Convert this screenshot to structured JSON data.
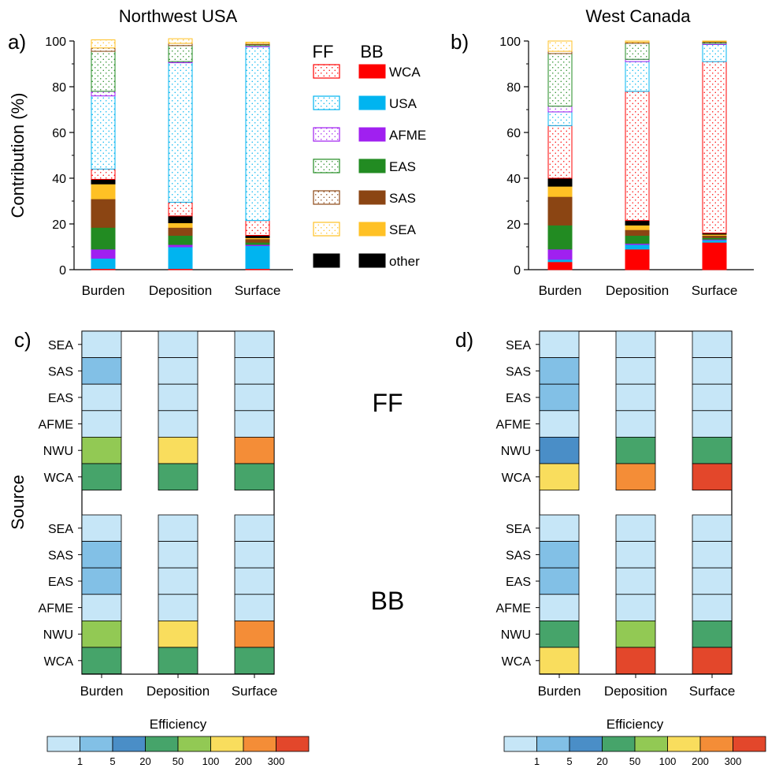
{
  "figure": {
    "cats": [
      "Burden",
      "Deposition",
      "Surface"
    ],
    "bb_label": "BB",
    "ff_label": "FF",
    "source_label": "Source",
    "ylabel": "Contribution (%)",
    "yticks": [
      "0",
      "20",
      "40",
      "60",
      "80",
      "100"
    ],
    "colorbar": {
      "title": "Efficiency",
      "ticks": [
        "1",
        "5",
        "20",
        "50",
        "100",
        "200",
        "300"
      ],
      "colors": [
        "#c6e6f7",
        "#82c0e6",
        "#4a8ec7",
        "#46a46a",
        "#92c954",
        "#f9dd5d",
        "#f48d37",
        "#e3472b"
      ]
    }
  },
  "legend": {
    "ff_header": "FF",
    "bb_header": "BB",
    "items": [
      {
        "label": "WCA",
        "color": "#ff0000"
      },
      {
        "label": "USA",
        "color": "#00b4f0"
      },
      {
        "label": "AFME",
        "color": "#a020f0"
      },
      {
        "label": "EAS",
        "color": "#228b22"
      },
      {
        "label": "SAS",
        "color": "#8b4513"
      },
      {
        "label": "SEA",
        "color": "#ffc125"
      },
      {
        "label": "other",
        "color": "#000000"
      }
    ]
  },
  "chart_data": [
    {
      "panel": "a)",
      "title": "Northwest USA",
      "type": "bar",
      "stacked": true,
      "ylabel": "Contribution (%)",
      "ylim": [
        0,
        100
      ],
      "categories": [
        "Burden",
        "Deposition",
        "Surface"
      ],
      "stack_order": [
        "BB WCA",
        "BB USA",
        "BB AFME",
        "BB EAS",
        "BB SAS",
        "BB SEA",
        "other",
        "FF WCA",
        "FF USA",
        "FF AFME",
        "FF EAS",
        "FF SAS",
        "FF SEA"
      ],
      "series": [
        {
          "name": "BB WCA",
          "values": [
            0.5,
            0.5,
            0.5
          ]
        },
        {
          "name": "BB USA",
          "values": [
            4.5,
            9.5,
            10
          ]
        },
        {
          "name": "BB AFME",
          "values": [
            4,
            1,
            0.5
          ]
        },
        {
          "name": "BB EAS",
          "values": [
            9.5,
            4,
            1
          ]
        },
        {
          "name": "BB SAS",
          "values": [
            12.5,
            3.5,
            1.5
          ]
        },
        {
          "name": "BB SEA",
          "values": [
            6.5,
            2,
            0.5
          ]
        },
        {
          "name": "other",
          "values": [
            2,
            3,
            1
          ]
        },
        {
          "name": "FF WCA",
          "values": [
            4.5,
            6,
            6.5
          ]
        },
        {
          "name": "FF USA",
          "values": [
            32,
            61,
            76
          ]
        },
        {
          "name": "FF AFME",
          "values": [
            2,
            0.5,
            0.5
          ]
        },
        {
          "name": "FF EAS",
          "values": [
            17.5,
            7,
            0.5
          ]
        },
        {
          "name": "FF SAS",
          "values": [
            1.5,
            1,
            0.5
          ]
        },
        {
          "name": "FF SEA",
          "values": [
            3.5,
            2,
            0.5
          ]
        }
      ]
    },
    {
      "panel": "b)",
      "title": "West Canada",
      "type": "bar",
      "stacked": true,
      "ylabel": "",
      "ylim": [
        0,
        100
      ],
      "categories": [
        "Burden",
        "Deposition",
        "Surface"
      ],
      "stack_order": [
        "BB WCA",
        "BB USA",
        "BB AFME",
        "BB EAS",
        "BB SAS",
        "BB SEA",
        "other",
        "FF WCA",
        "FF USA",
        "FF AFME",
        "FF EAS",
        "FF SAS",
        "FF SEA"
      ],
      "series": [
        {
          "name": "BB WCA",
          "values": [
            3.5,
            9,
            12
          ]
        },
        {
          "name": "BB USA",
          "values": [
            1,
            2,
            1
          ]
        },
        {
          "name": "BB AFME",
          "values": [
            4.5,
            0.5,
            0.3
          ]
        },
        {
          "name": "BB EAS",
          "values": [
            10.5,
            3.5,
            0.7
          ]
        },
        {
          "name": "BB SAS",
          "values": [
            12.5,
            2.5,
            1
          ]
        },
        {
          "name": "BB SEA",
          "values": [
            4.5,
            2,
            0.5
          ]
        },
        {
          "name": "other",
          "values": [
            3.5,
            2,
            0.5
          ]
        },
        {
          "name": "FF WCA",
          "values": [
            23,
            56.5,
            75
          ]
        },
        {
          "name": "FF USA",
          "values": [
            6,
            13,
            7.5
          ]
        },
        {
          "name": "FF AFME",
          "values": [
            2.5,
            1,
            0.5
          ]
        },
        {
          "name": "FF EAS",
          "values": [
            23,
            7,
            0.5
          ]
        },
        {
          "name": "FF SAS",
          "values": [
            1,
            0.5,
            0.3
          ]
        },
        {
          "name": "FF SEA",
          "values": [
            4.5,
            0.5,
            0.2
          ]
        }
      ]
    },
    {
      "panel": "c)",
      "type": "heatmap",
      "columns": [
        "Burden",
        "Deposition",
        "Surface"
      ],
      "groups": [
        {
          "name": "FF",
          "rows": [
            "SEA",
            "SAS",
            "EAS",
            "AFME",
            "NWU",
            "WCA"
          ],
          "bins": [
            [
              0,
              0,
              0
            ],
            [
              1,
              0,
              0
            ],
            [
              0,
              0,
              0
            ],
            [
              0,
              0,
              0
            ],
            [
              4,
              5,
              6
            ],
            [
              3,
              3,
              3
            ]
          ]
        },
        {
          "name": "BB",
          "rows": [
            "SEA",
            "SAS",
            "EAS",
            "AFME",
            "NWU",
            "WCA"
          ],
          "bins": [
            [
              0,
              0,
              0
            ],
            [
              1,
              0,
              0
            ],
            [
              1,
              0,
              0
            ],
            [
              0,
              0,
              0
            ],
            [
              4,
              5,
              6
            ],
            [
              3,
              3,
              3
            ]
          ]
        }
      ],
      "ylabel": "Source",
      "colorbar_title": "Efficiency",
      "colorbar_ticks": [
        "1",
        "5",
        "20",
        "50",
        "100",
        "200",
        "300"
      ]
    },
    {
      "panel": "d)",
      "type": "heatmap",
      "columns": [
        "Burden",
        "Deposition",
        "Surface"
      ],
      "groups": [
        {
          "name": "FF",
          "rows": [
            "SEA",
            "SAS",
            "EAS",
            "AFME",
            "NWU",
            "WCA"
          ],
          "bins": [
            [
              0,
              0,
              0
            ],
            [
              1,
              0,
              0
            ],
            [
              1,
              0,
              0
            ],
            [
              0,
              0,
              0
            ],
            [
              2,
              3,
              3
            ],
            [
              5,
              6,
              7
            ]
          ]
        },
        {
          "name": "BB",
          "rows": [
            "SEA",
            "SAS",
            "EAS",
            "AFME",
            "NWU",
            "WCA"
          ],
          "bins": [
            [
              0,
              0,
              0
            ],
            [
              1,
              0,
              0
            ],
            [
              1,
              0,
              0
            ],
            [
              0,
              0,
              0
            ],
            [
              3,
              4,
              3
            ],
            [
              5,
              7,
              7
            ]
          ]
        }
      ],
      "colorbar_title": "Efficiency",
      "colorbar_ticks": [
        "1",
        "5",
        "20",
        "50",
        "100",
        "200",
        "300"
      ]
    }
  ]
}
